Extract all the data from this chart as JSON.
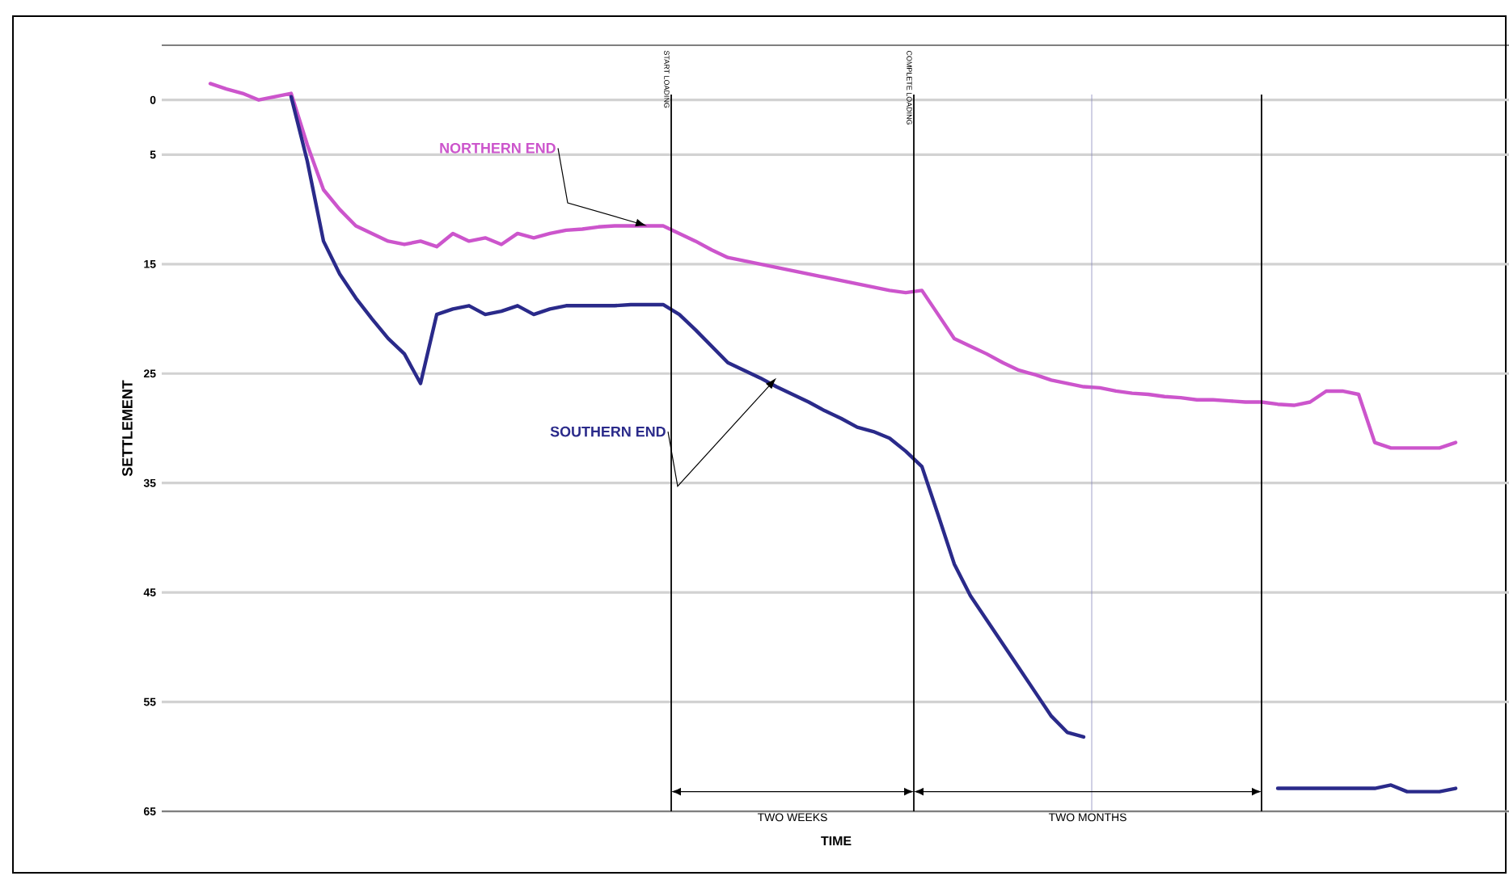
{
  "chart_data": {
    "type": "line",
    "xlabel": "TIME",
    "ylabel": "SETTLEMENT",
    "categories": [
      null,
      null,
      null,
      null,
      null,
      null,
      null,
      null,
      null,
      null,
      null,
      null,
      null,
      null,
      null,
      null,
      null,
      null,
      null,
      null,
      null,
      null,
      null,
      null,
      null,
      null,
      null,
      null,
      null,
      null,
      null,
      null,
      null,
      null,
      null,
      null,
      null,
      null,
      null,
      null,
      null,
      null,
      null,
      null,
      null,
      null,
      null,
      null,
      null,
      null,
      null,
      null,
      null,
      null,
      null,
      null,
      null,
      null,
      null,
      null,
      null,
      null,
      null,
      null,
      null,
      null,
      null,
      null,
      null,
      null,
      null,
      null,
      null,
      null,
      null,
      null,
      null,
      null,
      null,
      null,
      null,
      null,
      null,
      null
    ],
    "series": [
      {
        "name": "NORTHERN END",
        "color": "#cc55cc",
        "values": [
          null,
          null,
          null,
          -1.5,
          -1.0,
          -0.6,
          0.0,
          -0.3,
          -0.6,
          4.1,
          8.2,
          10.0,
          11.5,
          12.2,
          12.9,
          13.2,
          12.9,
          13.4,
          12.2,
          12.9,
          12.6,
          13.2,
          12.2,
          12.6,
          12.2,
          11.9,
          11.8,
          11.6,
          11.5,
          11.5,
          11.5,
          11.5,
          12.2,
          12.9,
          13.7,
          14.4,
          14.7,
          15.0,
          15.3,
          15.6,
          15.9,
          16.2,
          16.5,
          16.8,
          17.1,
          17.4,
          17.6,
          17.4,
          19.6,
          21.8,
          22.5,
          23.2,
          24.0,
          24.7,
          25.1,
          25.6,
          25.9,
          26.2,
          26.3,
          26.6,
          26.8,
          26.9,
          27.1,
          27.2,
          27.4,
          27.4,
          27.5,
          27.6,
          27.6,
          27.8,
          27.9,
          27.6,
          26.6,
          26.6,
          26.9,
          31.3,
          31.8,
          31.8,
          31.8,
          31.8,
          31.3,
          null,
          null,
          null
        ]
      },
      {
        "name": "SOUTHERN END",
        "color": "#2a2a8a",
        "values": [
          null,
          null,
          null,
          null,
          null,
          null,
          null,
          null,
          -0.3,
          5.6,
          12.9,
          15.9,
          18.1,
          20.0,
          21.8,
          23.2,
          25.9,
          19.6,
          19.1,
          18.8,
          19.6,
          19.3,
          18.8,
          19.6,
          19.1,
          18.8,
          18.8,
          18.8,
          18.8,
          18.7,
          18.7,
          18.7,
          19.6,
          21.0,
          22.5,
          24.0,
          24.7,
          25.4,
          26.2,
          26.9,
          27.6,
          28.4,
          29.1,
          29.9,
          30.3,
          30.9,
          32.1,
          33.5,
          37.9,
          42.4,
          45.3,
          47.5,
          49.7,
          51.9,
          54.1,
          56.3,
          57.8,
          58.2,
          null,
          null,
          null,
          null,
          null,
          null,
          null,
          null,
          null,
          null,
          null,
          62.9,
          62.9,
          62.9,
          62.9,
          62.9,
          62.9,
          62.9,
          62.6,
          63.2,
          63.2,
          63.2,
          62.9,
          null,
          null,
          null
        ]
      }
    ],
    "ylim": [
      65,
      -5
    ],
    "yticks": [
      0,
      5,
      15,
      25,
      35,
      45,
      55,
      65
    ],
    "grid": "y",
    "legend": false,
    "annotations": [
      "START LOADING",
      "COMPLETE LOADING",
      "TWO WEEKS",
      "TWO MONTHS"
    ]
  }
}
